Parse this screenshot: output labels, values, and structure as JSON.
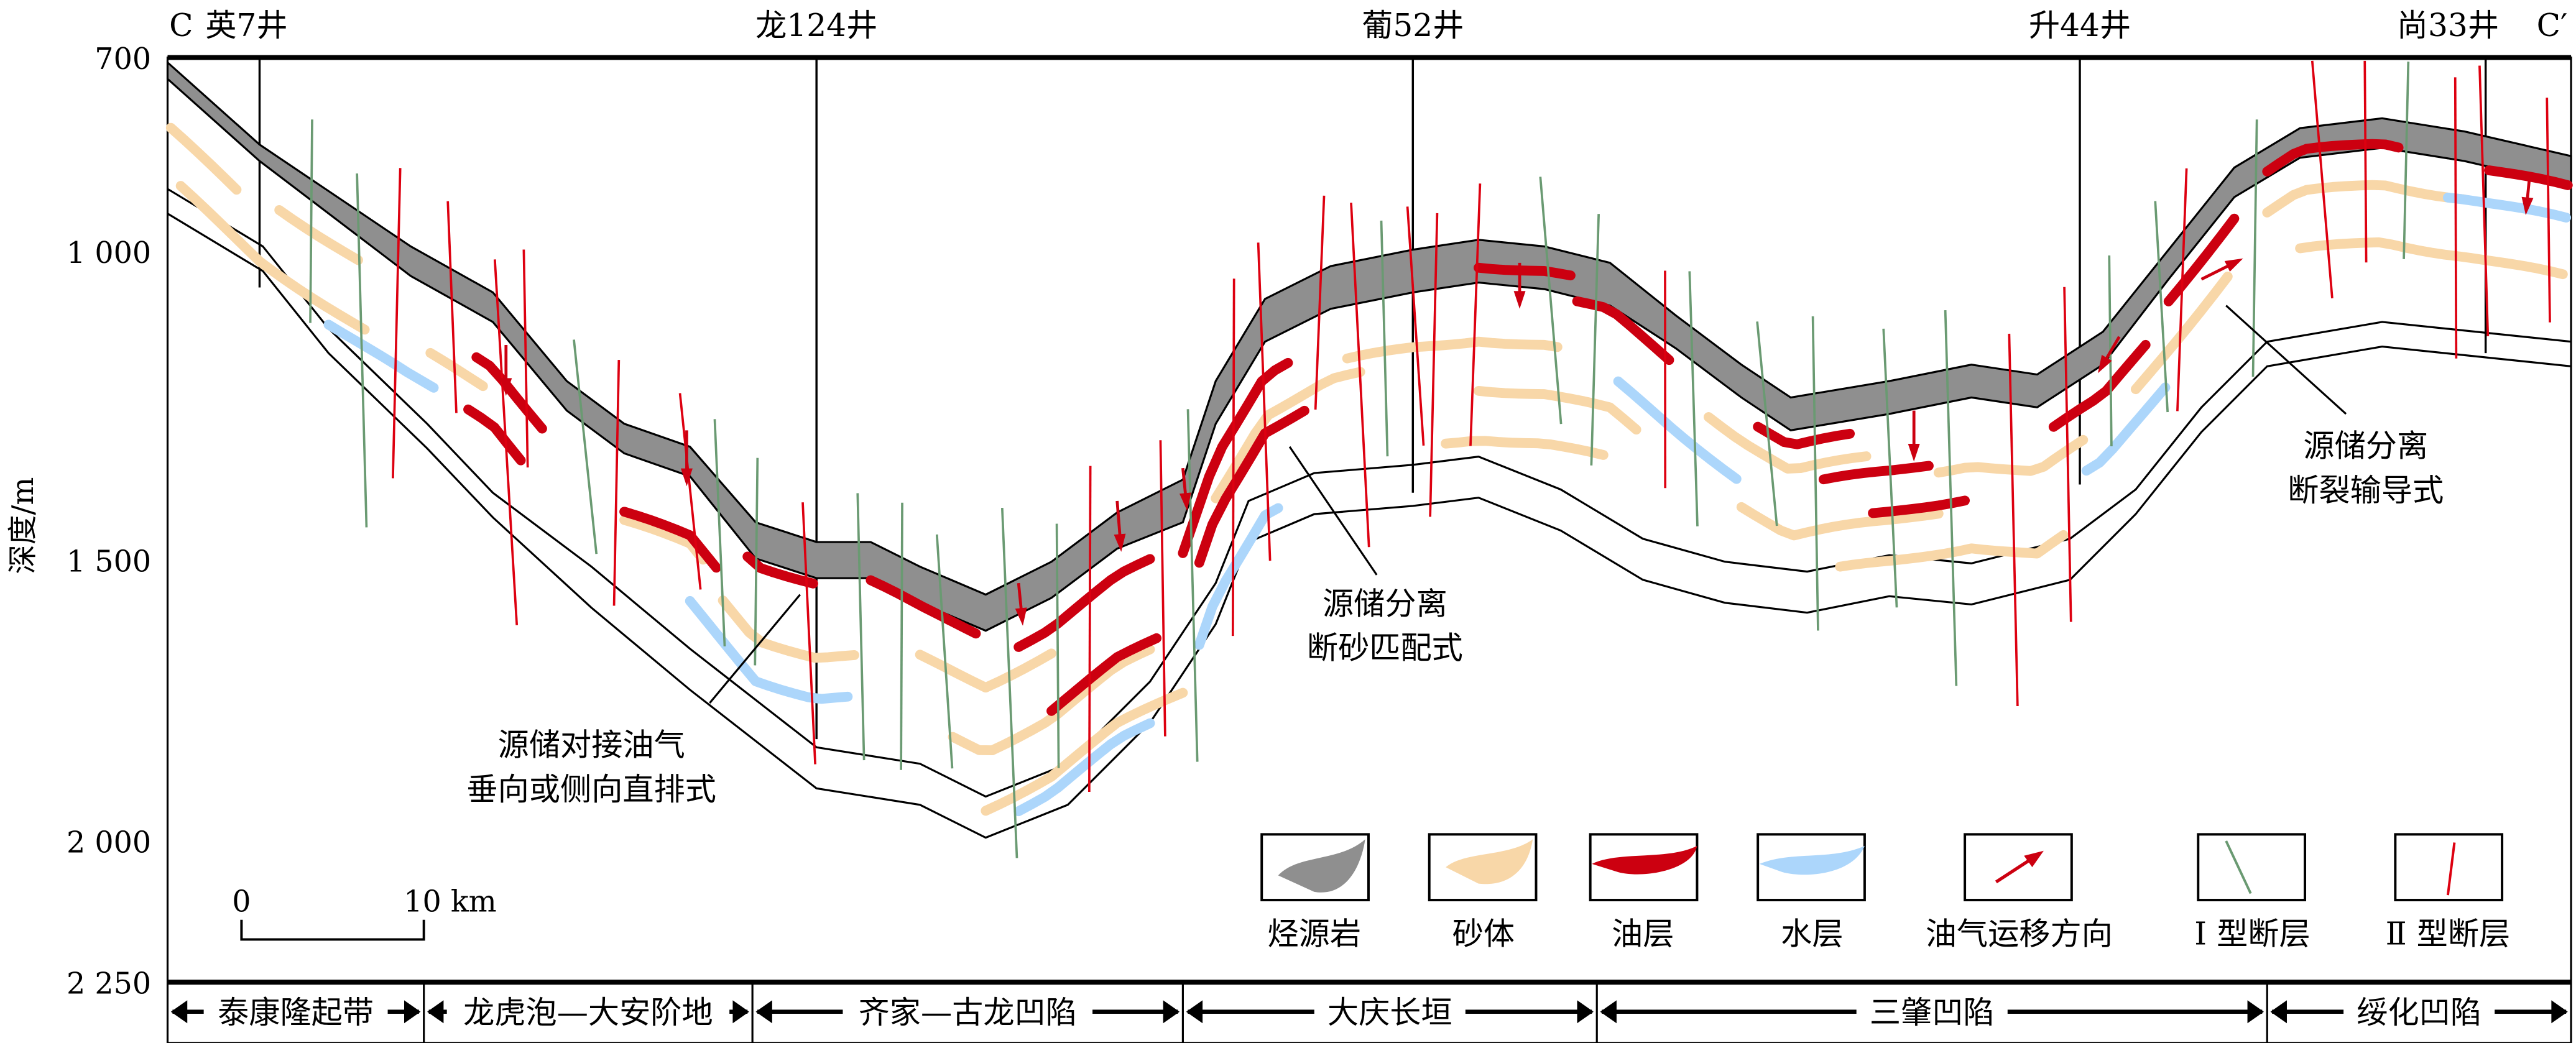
{
  "wells": [
    {
      "label": "英7井",
      "prefix": "C"
    },
    {
      "label": "龙124井"
    },
    {
      "label": "葡52井"
    },
    {
      "label": "升44井"
    },
    {
      "label": "尚33井",
      "suffix": "C′"
    }
  ],
  "y_axis": {
    "label": "深度/m",
    "ticks": [
      "700",
      "1 000",
      "1 500",
      "2 000",
      "2 250"
    ]
  },
  "annotations": [
    {
      "lines": [
        "源储对接油气",
        "垂向或侧向直排式"
      ]
    },
    {
      "lines": [
        "源储分离",
        "断砂匹配式"
      ]
    },
    {
      "lines": [
        "源储分离",
        "断裂输导式"
      ]
    }
  ],
  "scale_bar": {
    "start": "0",
    "end": "10 km"
  },
  "legend": [
    {
      "label": "烃源岩",
      "color": "#8f8f8f"
    },
    {
      "label": "砂体",
      "color": "#f8d7a8"
    },
    {
      "label": "油层",
      "color": "#cc0010"
    },
    {
      "label": "水层",
      "color": "#acd6fb"
    },
    {
      "label": "油气运移方向",
      "color": "#cc0010"
    },
    {
      "label": "Ⅰ 型断层",
      "color": "#6a9a72"
    },
    {
      "label": "Ⅱ 型断层",
      "color": "#dd0010"
    }
  ],
  "zones": [
    "泰康隆起带",
    "龙虎泡—大安阶地",
    "齐家—古龙凹陷",
    "大庆长垣",
    "三肇凹陷",
    "绥化凹陷"
  ]
}
